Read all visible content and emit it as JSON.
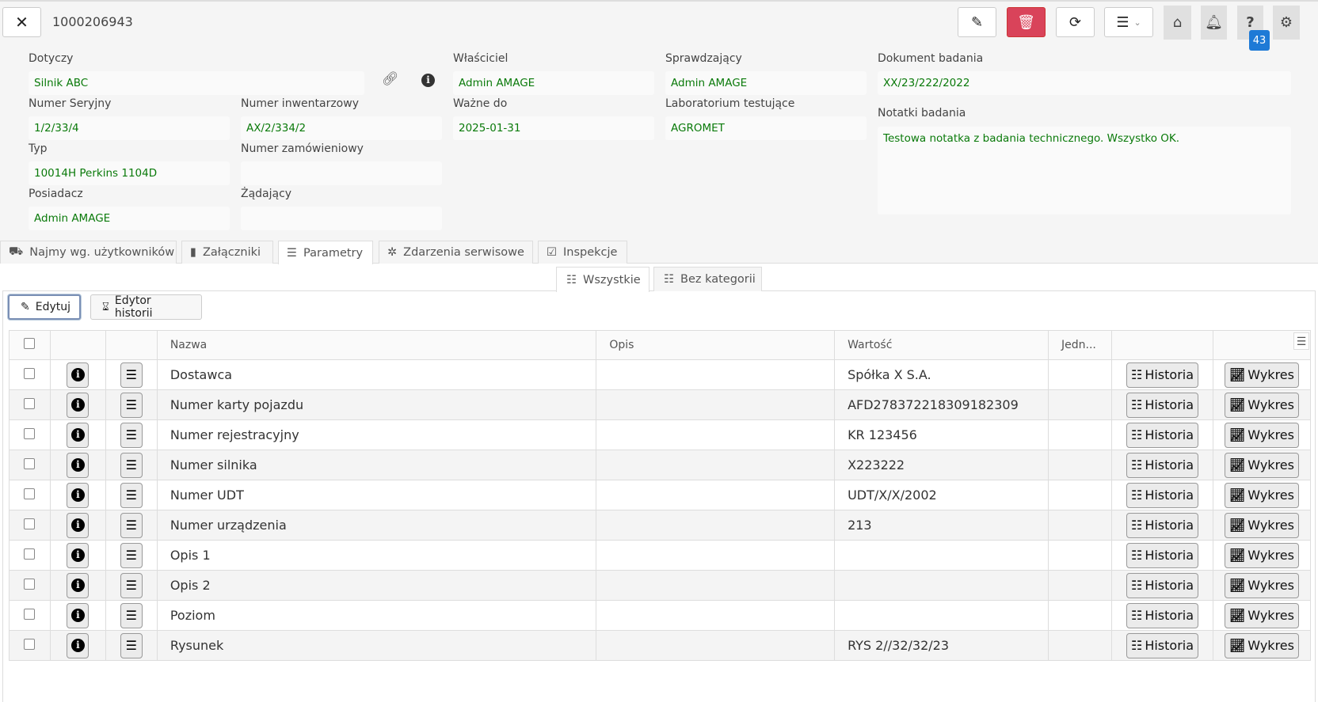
{
  "header": {
    "record_id": "1000206943",
    "close_icon": "close-icon",
    "badge_count": "43"
  },
  "toolbar": {
    "icons": [
      "edit-icon",
      "trash-icon",
      "refresh-icon",
      "menu-icon",
      "home-icon",
      "bell-icon",
      "help-icon",
      "gear-icon"
    ],
    "delete_color": "#d9435a"
  },
  "form": {
    "dotyczy": {
      "label": "Dotyczy",
      "value": "Silnik ABC"
    },
    "numer_seryjny": {
      "label": "Numer Seryjny",
      "value": "1/2/33/4"
    },
    "numer_inwentarzowy": {
      "label": "Numer inwentarzowy",
      "value": "AX/2/334/2"
    },
    "typ": {
      "label": "Typ",
      "value": "10014H Perkins 1104D"
    },
    "numer_zamowieniowy": {
      "label": "Numer zamówieniowy",
      "value": ""
    },
    "posiadacz": {
      "label": "Posiadacz",
      "value": "Admin AMAGE"
    },
    "zadajacy": {
      "label": "Żądający",
      "value": ""
    },
    "wlasciciel": {
      "label": "Właściciel",
      "value": "Admin AMAGE"
    },
    "wazne_do": {
      "label": "Ważne do",
      "value": "2025-01-31"
    },
    "sprawdzajacy": {
      "label": "Sprawdzający",
      "value": "Admin AMAGE"
    },
    "laboratorium": {
      "label": "Laboratorium testujące",
      "value": "AGROMET"
    },
    "dokument": {
      "label": "Dokument badania",
      "value": "XX/23/222/2022"
    },
    "notatki": {
      "label": "Notatki badania",
      "value": "Testowa notatka z badania technicznego. Wszystko OK."
    }
  },
  "tabs": [
    {
      "label": "Najmy wg. użytkowników"
    },
    {
      "label": "Załączniki"
    },
    {
      "label": "Parametry"
    },
    {
      "label": "Zdarzenia serwisowe"
    },
    {
      "label": "Inspekcje"
    }
  ],
  "subtabs": [
    {
      "label": "Wszystkie"
    },
    {
      "label": "Bez kategorii"
    }
  ],
  "actions": {
    "edit": "Edytuj",
    "history_editor": "Edytor historii"
  },
  "table": {
    "columns": [
      "Nazwa",
      "Opis",
      "Wartość",
      "Jedn..."
    ],
    "history_label": "Historia",
    "chart_label": "Wykres",
    "rows": [
      {
        "name": "Dostawca",
        "desc": "",
        "value": "Spółka X S.A.",
        "unit": ""
      },
      {
        "name": "Numer karty pojazdu",
        "desc": "",
        "value": "AFD278372218309182309",
        "unit": ""
      },
      {
        "name": "Numer rejestracyjny",
        "desc": "",
        "value": "KR 123456",
        "unit": ""
      },
      {
        "name": "Numer silnika",
        "desc": "",
        "value": "X223222",
        "unit": ""
      },
      {
        "name": "Numer UDT",
        "desc": "",
        "value": "UDT/X/X/2002",
        "unit": ""
      },
      {
        "name": "Numer urządzenia",
        "desc": "",
        "value": "213",
        "unit": ""
      },
      {
        "name": "Opis 1",
        "desc": "",
        "value": "",
        "unit": ""
      },
      {
        "name": "Opis 2",
        "desc": "",
        "value": "",
        "unit": ""
      },
      {
        "name": "Poziom",
        "desc": "",
        "value": "",
        "unit": ""
      },
      {
        "name": "Rysunek",
        "desc": "",
        "value": "RYS 2//32/32/23",
        "unit": ""
      }
    ]
  }
}
